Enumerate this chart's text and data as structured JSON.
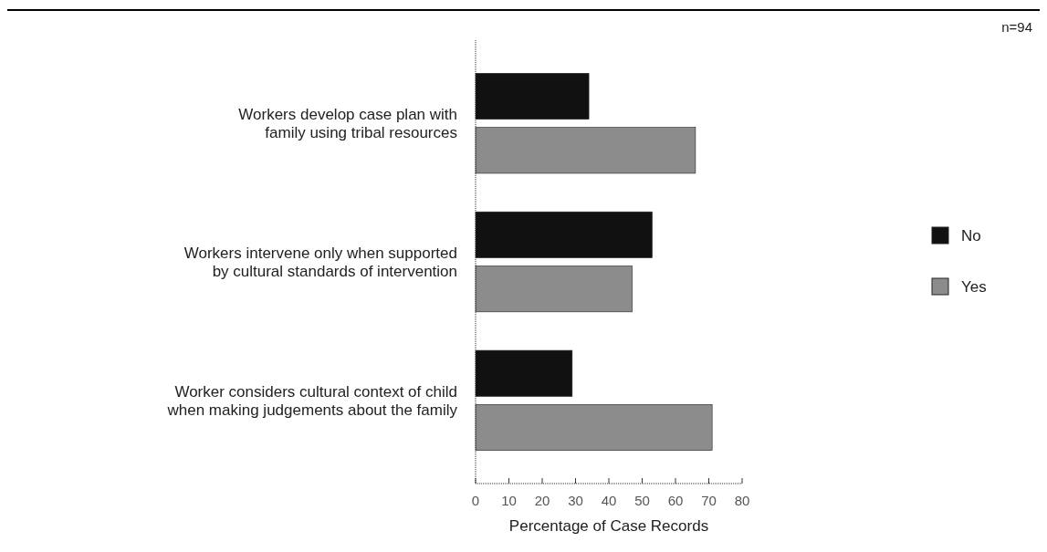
{
  "chart_data": {
    "type": "bar",
    "orientation": "horizontal",
    "xlabel": "Percentage of Case Records",
    "categories": [
      "Workers develop case plan with\nfamily using tribal resources",
      "Workers intervene only when supported\nby cultural standards of intervention",
      "Worker considers cultural context of child\nwhen making judgements about the family"
    ],
    "series": [
      {
        "name": "No",
        "color": "#111111",
        "values": [
          34,
          53,
          29
        ]
      },
      {
        "name": "Yes",
        "color": "#8c8c8c",
        "values": [
          66,
          47,
          71
        ]
      }
    ],
    "xlim": [
      0,
      80
    ],
    "xticks": [
      0,
      10,
      20,
      30,
      40,
      50,
      60,
      70,
      80
    ],
    "legend": "right",
    "grid": false,
    "annotations": [
      "n=94"
    ]
  }
}
